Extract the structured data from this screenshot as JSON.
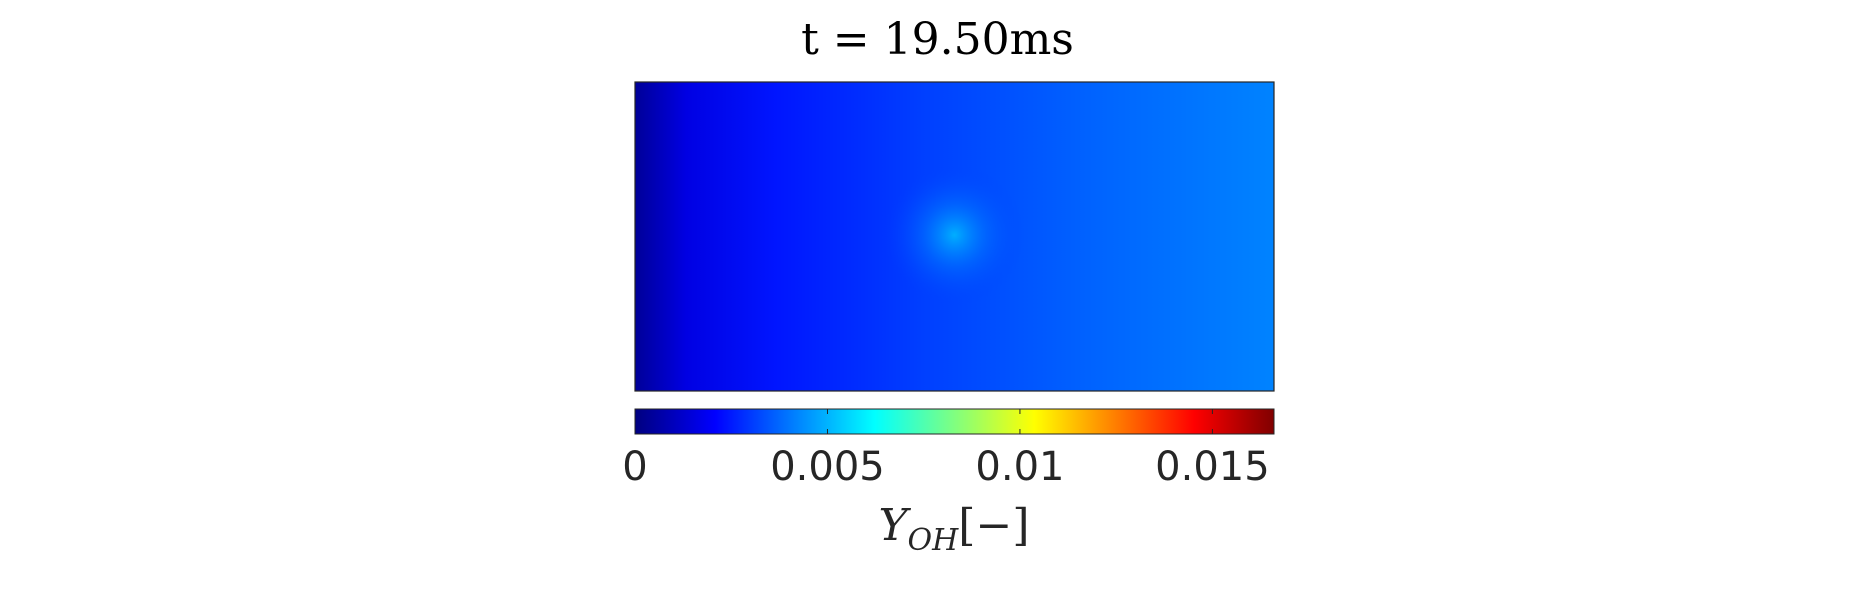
{
  "chart_data": {
    "type": "heatmap",
    "title": "t = 19.50ms",
    "colormap": "jet",
    "color_range": [
      0,
      0.0166
    ],
    "colorbar": {
      "location": "bottom",
      "ticks": [
        0,
        0.005,
        0.01,
        0.015
      ],
      "tick_labels": [
        "0",
        "0.005",
        "0.01",
        "0.015"
      ],
      "label": {
        "symbol": "Y",
        "subscript": "OH",
        "unit": "[−]"
      }
    },
    "field": {
      "description_values": "OH mass fraction field; low near left edge, slightly higher toward right, local maximum near center-left",
      "left_edge_value": 0.0004,
      "background_center_value": 0.0031,
      "right_edge_value": 0.0042,
      "hotspot_peak_value": 0.0049
    }
  }
}
